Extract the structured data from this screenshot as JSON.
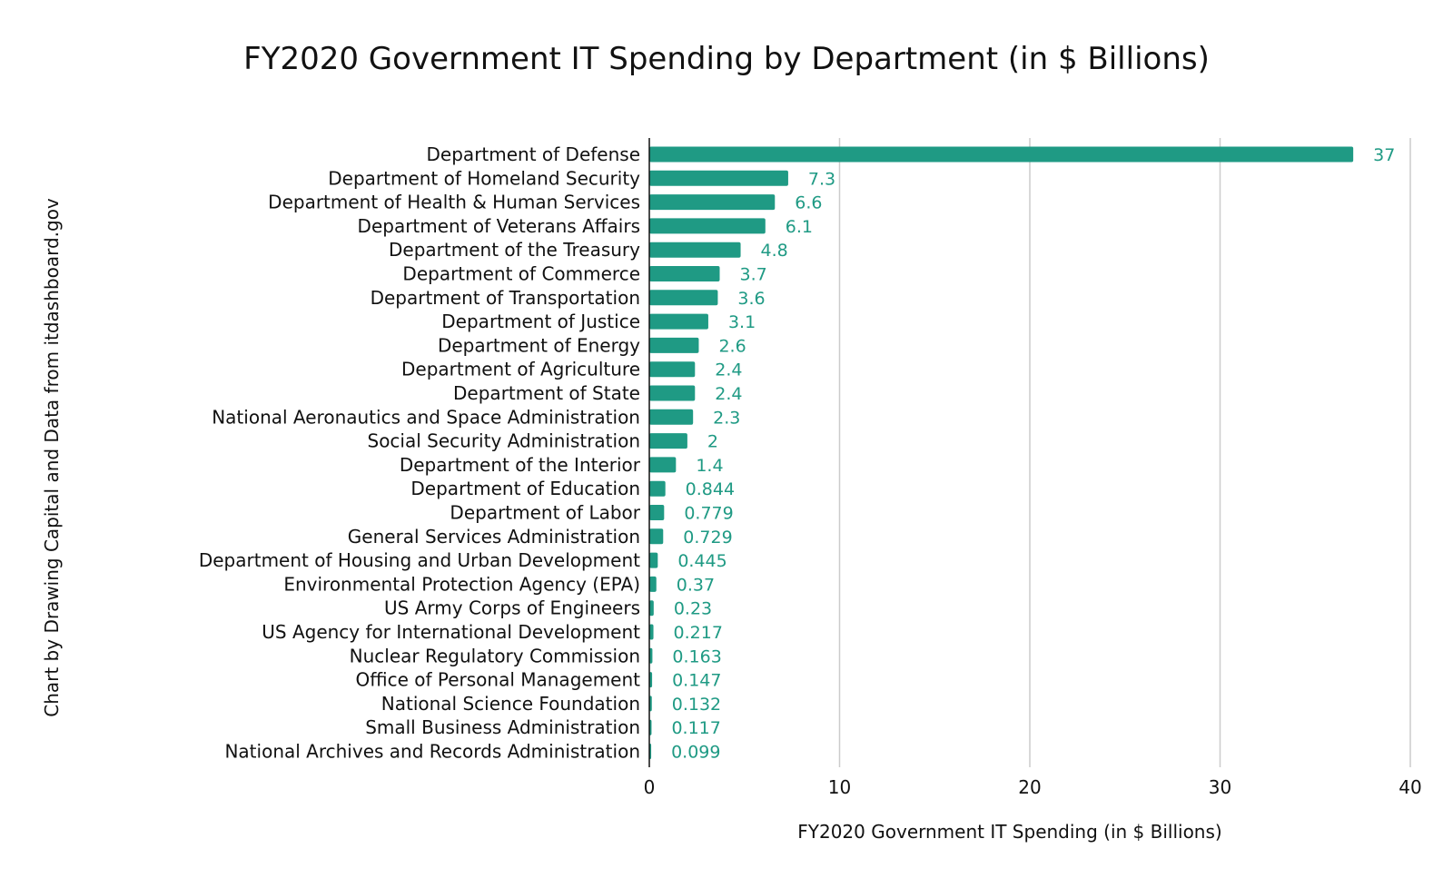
{
  "chart_data": {
    "type": "bar",
    "orientation": "horizontal",
    "title": "FY2020 Government IT Spending by Department (in $ Billions)",
    "xlabel": "FY2020 Government IT Spending (in $ Billions)",
    "ylabel": "",
    "side_note": "Chart by Drawing Capital and Data from itdashboard.gov",
    "xlim": [
      0,
      40
    ],
    "x_ticks": [
      0,
      10,
      20,
      30,
      40
    ],
    "grid": "vertical",
    "legend": "none",
    "bar_color": "#1f9a84",
    "value_label_color": "#1f9a84",
    "categories": [
      "Department of Defense",
      "Department of Homeland Security",
      "Department of Health & Human Services",
      "Department of Veterans Affairs",
      "Department of the Treasury",
      "Department of Commerce",
      "Department of Transportation",
      "Department of Justice",
      "Department of Energy",
      "Department of Agriculture",
      "Department of State",
      "National Aeronautics and Space Administration",
      "Social Security Administration",
      "Department of the Interior",
      "Department of Education",
      "Department of Labor",
      "General Services Administration",
      "Department of Housing and Urban Development",
      "Environmental Protection Agency (EPA)",
      "US Army Corps of Engineers",
      "US Agency for International Development",
      "Nuclear Regulatory Commission",
      "Office of Personal Management",
      "National Science Foundation",
      "Small Business Administration",
      "National Archives and Records Administration"
    ],
    "values": [
      37,
      7.3,
      6.6,
      6.1,
      4.8,
      3.7,
      3.6,
      3.1,
      2.6,
      2.4,
      2.4,
      2.3,
      2,
      1.4,
      0.844,
      0.779,
      0.729,
      0.445,
      0.37,
      0.23,
      0.217,
      0.163,
      0.147,
      0.132,
      0.117,
      0.099
    ],
    "value_labels": [
      "37",
      "7.3",
      "6.6",
      "6.1",
      "4.8",
      "3.7",
      "3.6",
      "3.1",
      "2.6",
      "2.4",
      "2.4",
      "2.3",
      "2",
      "1.4",
      "0.844",
      "0.779",
      "0.729",
      "0.445",
      "0.37",
      "0.23",
      "0.217",
      "0.163",
      "0.147",
      "0.132",
      "0.117",
      "0.099"
    ]
  }
}
